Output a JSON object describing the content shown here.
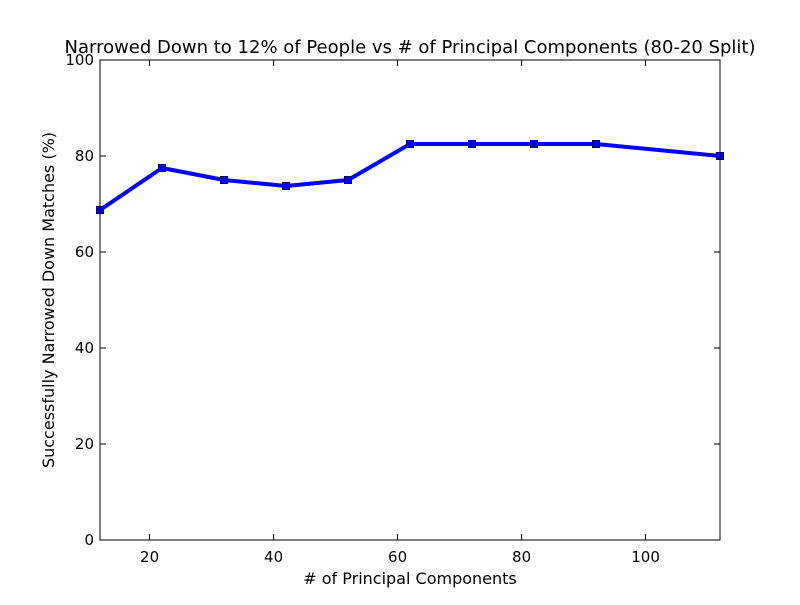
{
  "chart_data": {
    "type": "line",
    "title": "Narrowed Down to 12% of People vs # of Principal Components (80-20 Split)",
    "xlabel": "# of Principal Components",
    "ylabel": "Successfully Narrowed Down Matches (%)",
    "xlim": [
      12,
      112
    ],
    "ylim": [
      0,
      100
    ],
    "xticks": [
      20,
      40,
      60,
      80,
      100
    ],
    "yticks": [
      0,
      20,
      40,
      60,
      80,
      100
    ],
    "grid": false,
    "series": [
      {
        "color": "#0000ff",
        "marker": "square",
        "x": [
          12,
          22,
          32,
          42,
          52,
          62,
          72,
          82,
          92,
          112
        ],
        "y": [
          68.75,
          77.5,
          75.0,
          73.75,
          75.0,
          82.5,
          82.5,
          82.5,
          82.5,
          80.0
        ]
      }
    ]
  }
}
